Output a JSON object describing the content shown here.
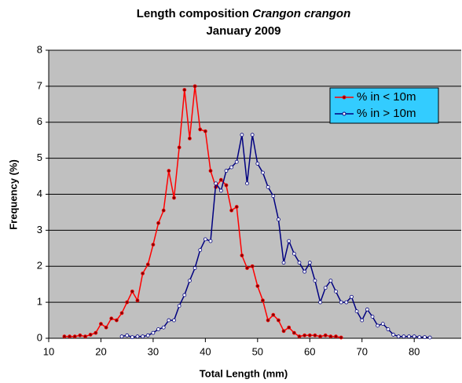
{
  "chart_data": {
    "type": "line",
    "title": "Length composition",
    "title_italic": "Crangon crangon",
    "subtitle": "January 2009",
    "x_label": "Total Length  (mm)",
    "y_label": "Frequency  (%)",
    "xlim": [
      10,
      89
    ],
    "xticks": [
      10,
      20,
      30,
      40,
      50,
      60,
      70,
      80
    ],
    "ylim": [
      0,
      8
    ],
    "yticks": [
      0,
      1,
      2,
      3,
      4,
      5,
      6,
      7,
      8
    ],
    "grid": true,
    "legend": "upper right",
    "series": [
      {
        "name": "% in < 10m",
        "color": "#ff0000",
        "x": [
          13,
          14,
          15,
          16,
          17,
          18,
          19,
          20,
          21,
          22,
          23,
          24,
          25,
          26,
          27,
          28,
          29,
          30,
          31,
          32,
          33,
          34,
          35,
          36,
          37,
          38,
          39,
          40,
          41,
          42,
          43,
          44,
          45,
          46,
          47,
          48,
          49,
          50,
          51,
          52,
          53,
          54,
          55,
          56,
          57,
          58,
          59,
          60,
          61,
          62,
          63,
          64,
          65,
          66
        ],
        "values": [
          0.05,
          0.05,
          0.05,
          0.08,
          0.05,
          0.1,
          0.15,
          0.4,
          0.3,
          0.55,
          0.5,
          0.7,
          1.0,
          1.3,
          1.05,
          1.8,
          2.05,
          2.6,
          3.2,
          3.55,
          4.65,
          3.9,
          5.3,
          6.9,
          5.55,
          7.0,
          5.8,
          5.75,
          4.65,
          4.2,
          4.4,
          4.25,
          3.55,
          3.65,
          2.3,
          1.95,
          2.0,
          1.45,
          1.05,
          0.5,
          0.65,
          0.5,
          0.2,
          0.3,
          0.15,
          0.05,
          0.08,
          0.08,
          0.08,
          0.05,
          0.08,
          0.05,
          0.05,
          0.02
        ]
      },
      {
        "name": "% in > 10m",
        "color": "#000080",
        "x": [
          24,
          25,
          26,
          27,
          28,
          29,
          30,
          31,
          32,
          33,
          34,
          35,
          36,
          37,
          38,
          39,
          40,
          41,
          42,
          43,
          44,
          45,
          46,
          47,
          48,
          49,
          50,
          51,
          52,
          53,
          54,
          55,
          56,
          57,
          58,
          59,
          60,
          61,
          62,
          63,
          64,
          65,
          66,
          67,
          68,
          69,
          70,
          71,
          72,
          73,
          74,
          75,
          76,
          77,
          78,
          79,
          80,
          81,
          82,
          83
        ],
        "values": [
          0.05,
          0.08,
          0.03,
          0.05,
          0.05,
          0.08,
          0.15,
          0.25,
          0.3,
          0.5,
          0.5,
          0.9,
          1.2,
          1.6,
          1.95,
          2.45,
          2.75,
          2.7,
          4.3,
          4.1,
          4.65,
          4.75,
          4.9,
          5.65,
          4.3,
          5.65,
          4.85,
          4.6,
          4.2,
          3.95,
          3.3,
          2.1,
          2.7,
          2.35,
          2.1,
          1.85,
          2.1,
          1.6,
          1.0,
          1.4,
          1.6,
          1.3,
          1.0,
          1.0,
          1.15,
          0.75,
          0.5,
          0.8,
          0.6,
          0.35,
          0.4,
          0.25,
          0.1,
          0.05,
          0.05,
          0.05,
          0.05,
          0.03,
          0.03,
          0.02
        ]
      }
    ]
  }
}
